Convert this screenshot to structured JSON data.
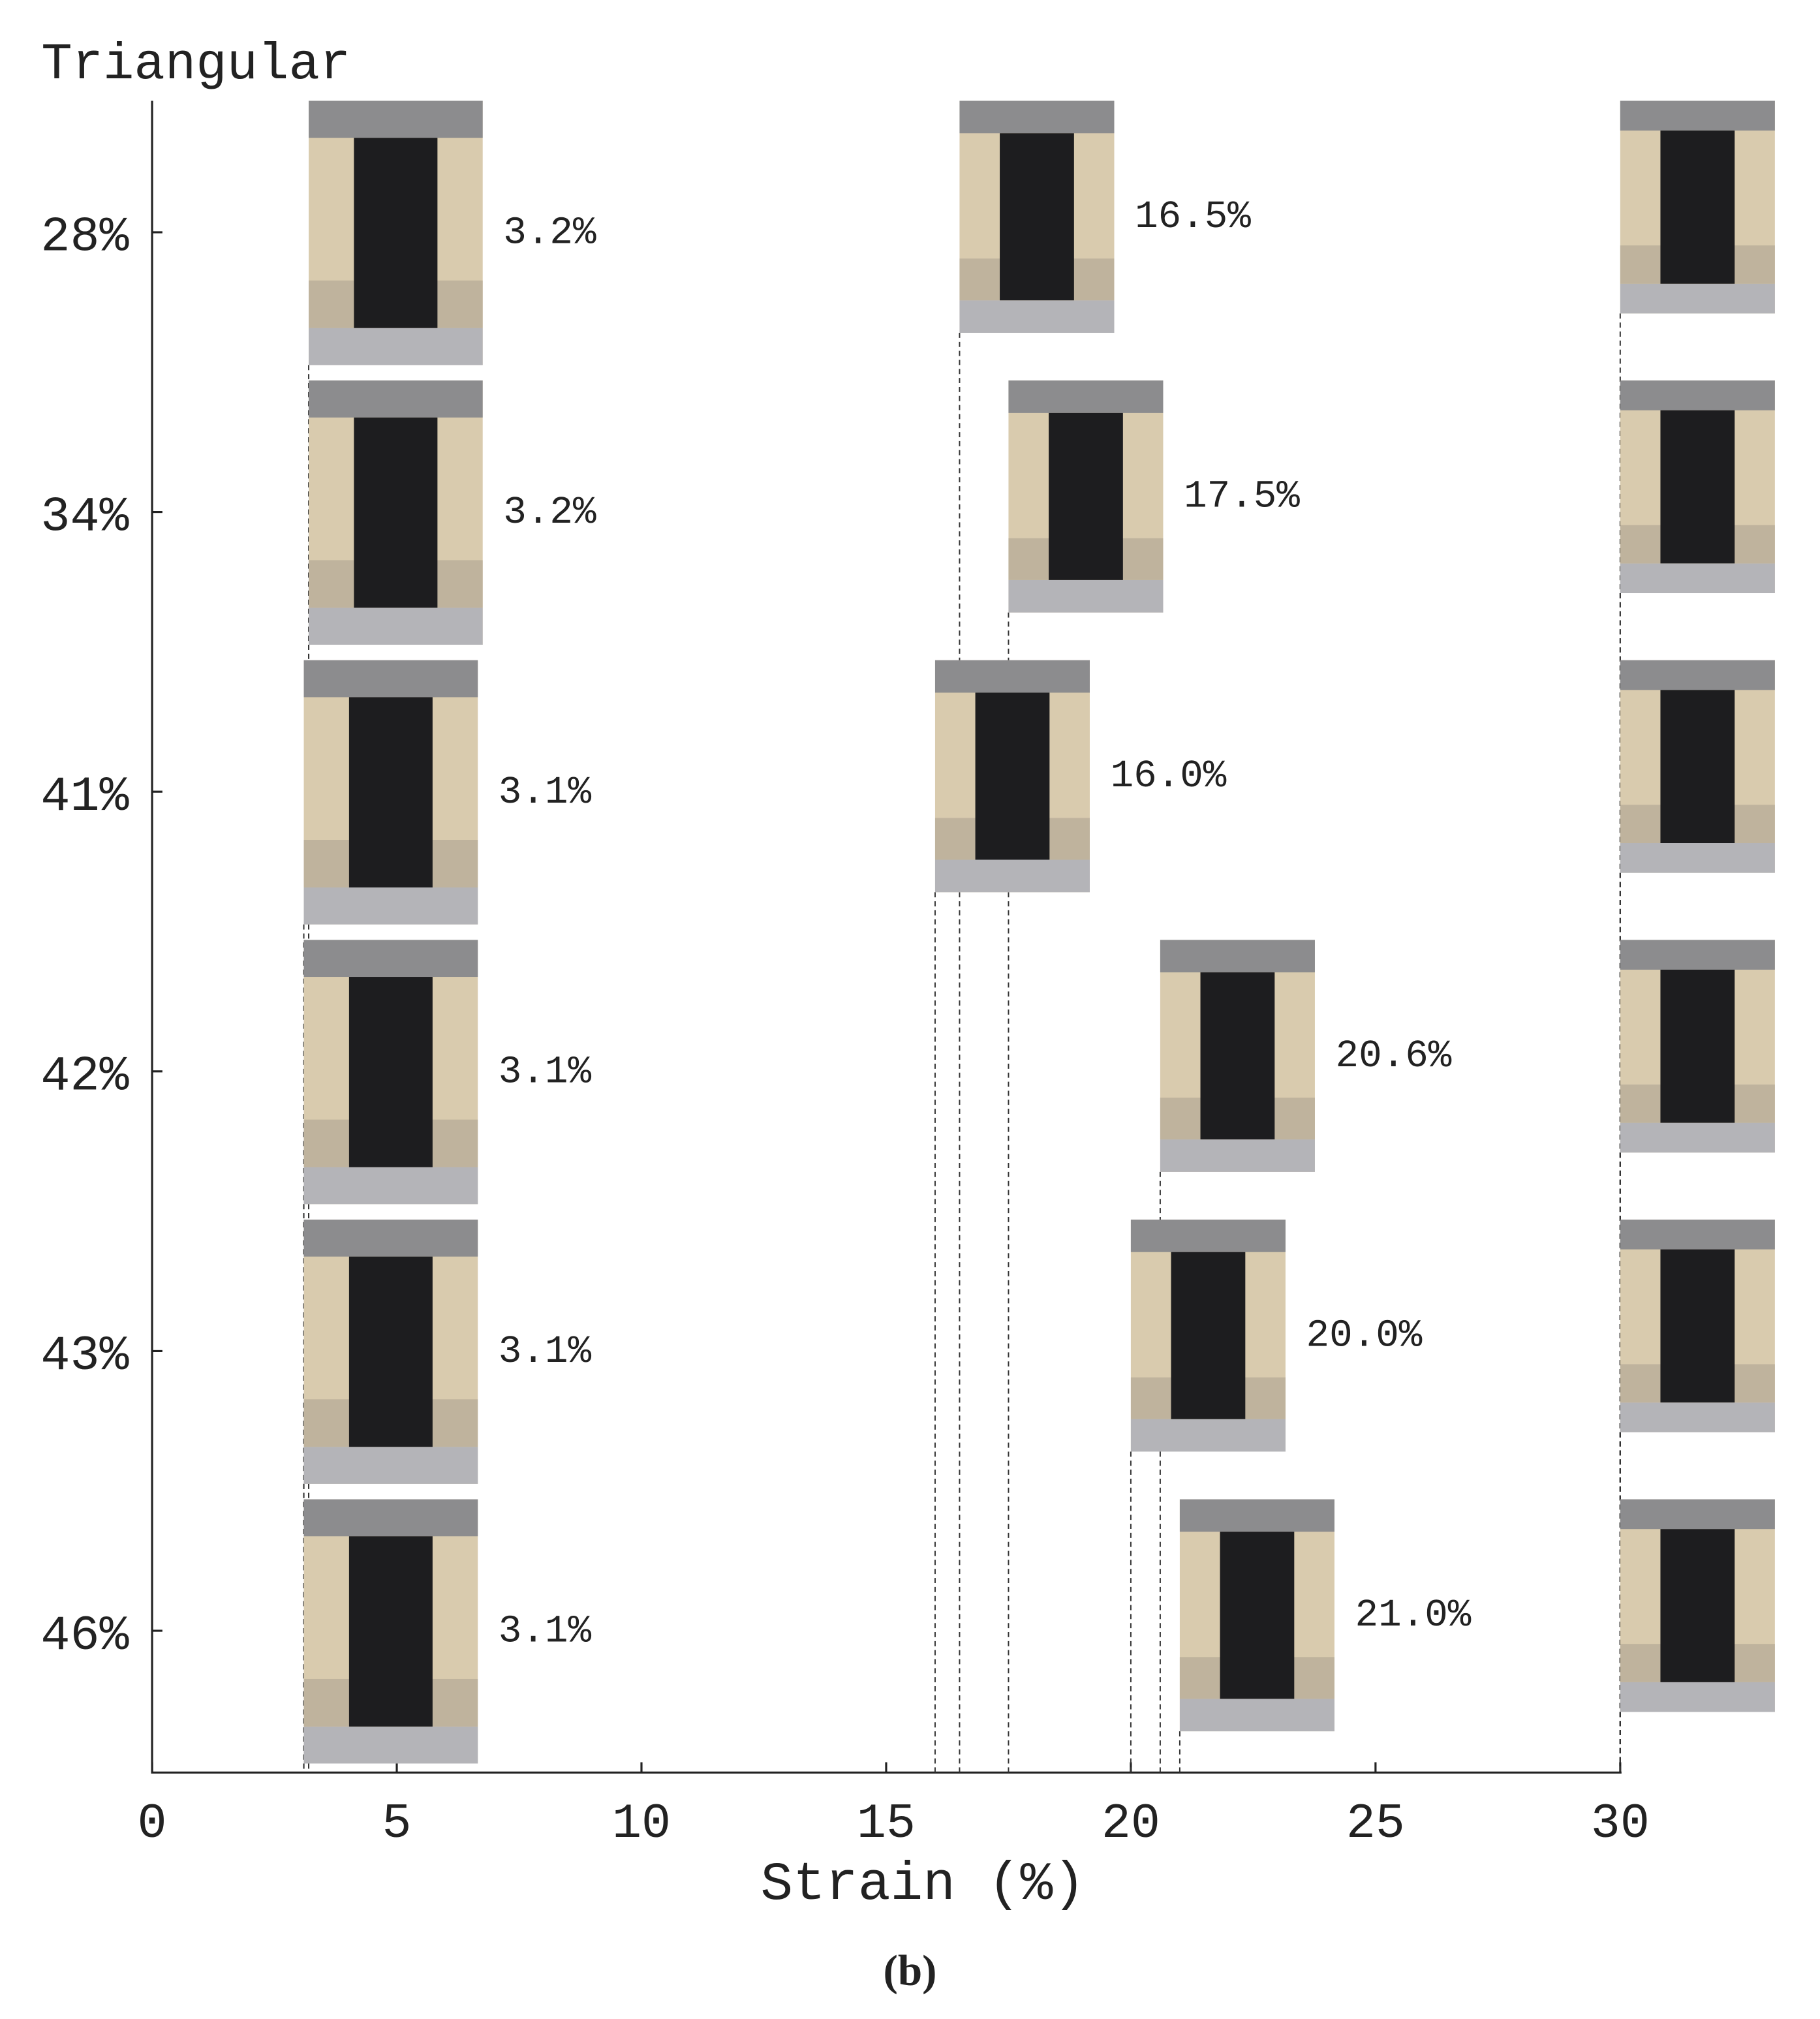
{
  "chart_data": {
    "type": "scatter",
    "title": "Triangular",
    "x_label": "Strain (%)",
    "caption": "(b)",
    "categories": [
      "28%",
      "34%",
      "41%",
      "42%",
      "43%",
      "46%"
    ],
    "series": [
      {
        "values": [
          3.2,
          3.2,
          3.1,
          3.1,
          3.1,
          3.1
        ],
        "value_labels": [
          "3.2%",
          "3.2%",
          "3.1%",
          "3.1%",
          "3.1%",
          "3.1%"
        ]
      },
      {
        "values": [
          16.5,
          17.5,
          16.0,
          20.6,
          20.0,
          21.0
        ],
        "value_labels": [
          "16.5%",
          "17.5%",
          "16.0%",
          "20.6%",
          "20.0%",
          "21.0%"
        ]
      },
      {
        "values": [
          30,
          30,
          30,
          30,
          30,
          30
        ]
      }
    ],
    "xlim": [
      0,
      30
    ],
    "xticks": [
      0,
      5,
      10,
      15,
      20,
      25,
      30
    ]
  }
}
